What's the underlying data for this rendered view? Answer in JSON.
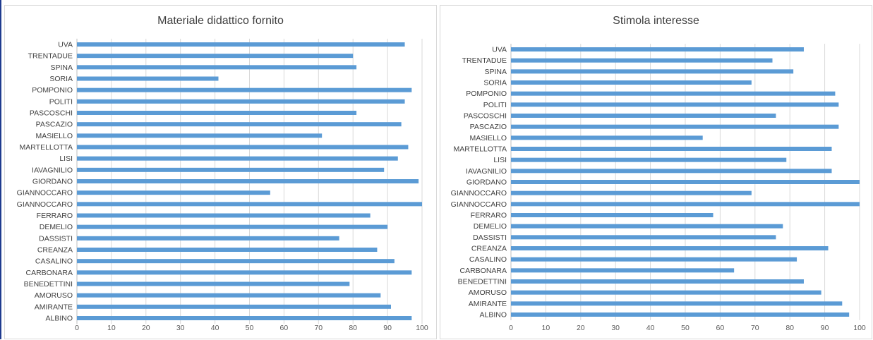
{
  "chart_data": [
    {
      "type": "bar",
      "orientation": "horizontal",
      "title": "Materiale didattico fornito",
      "xlim": [
        0,
        100
      ],
      "xticks": [
        0,
        10,
        20,
        30,
        40,
        50,
        60,
        70,
        80,
        90,
        100
      ],
      "grid": true,
      "color": "#5b9bd5",
      "categories": [
        "UVA",
        "TRENTADUE",
        "SPINA",
        "SORIA",
        "POMPONIO",
        "POLITI",
        "PASCOSCHI",
        "PASCAZIO",
        "MASIELLO",
        "MARTELLOTTA",
        "LISI",
        "IAVAGNILIO",
        "GIORDANO",
        "GIANNOCCARO",
        "GIANNOCCARO",
        "FERRARO",
        "DEMELIO",
        "DASSISTI",
        "CREANZA",
        "CASALINO",
        "CARBONARA",
        "BENEDETTINI",
        "AMORUSO",
        "AMIRANTE",
        "ALBINO"
      ],
      "values": [
        95,
        80,
        81,
        41,
        97,
        95,
        81,
        94,
        71,
        96,
        93,
        89,
        99,
        56,
        100,
        85,
        90,
        76,
        87,
        92,
        97,
        79,
        88,
        91,
        97
      ]
    },
    {
      "type": "bar",
      "orientation": "horizontal",
      "title": "Stimola interesse",
      "xlim": [
        0,
        100
      ],
      "xticks": [
        0,
        10,
        20,
        30,
        40,
        50,
        60,
        70,
        80,
        90,
        100
      ],
      "grid": true,
      "color": "#5b9bd5",
      "categories": [
        "UVA",
        "TRENTADUE",
        "SPINA",
        "SORIA",
        "POMPONIO",
        "POLITI",
        "PASCOSCHI",
        "PASCAZIO",
        "MASIELLO",
        "MARTELLOTTA",
        "LISI",
        "IAVAGNILIO",
        "GIORDANO",
        "GIANNOCCARO",
        "GIANNOCCARO",
        "FERRARO",
        "DEMELIO",
        "DASSISTI",
        "CREANZA",
        "CASALINO",
        "CARBONARA",
        "BENEDETTINI",
        "AMORUSO",
        "AMIRANTE",
        "ALBINO"
      ],
      "values": [
        84,
        75,
        81,
        69,
        93,
        94,
        76,
        94,
        55,
        92,
        79,
        92,
        100,
        69,
        100,
        58,
        78,
        76,
        91,
        82,
        64,
        84,
        89,
        95,
        97
      ]
    }
  ]
}
